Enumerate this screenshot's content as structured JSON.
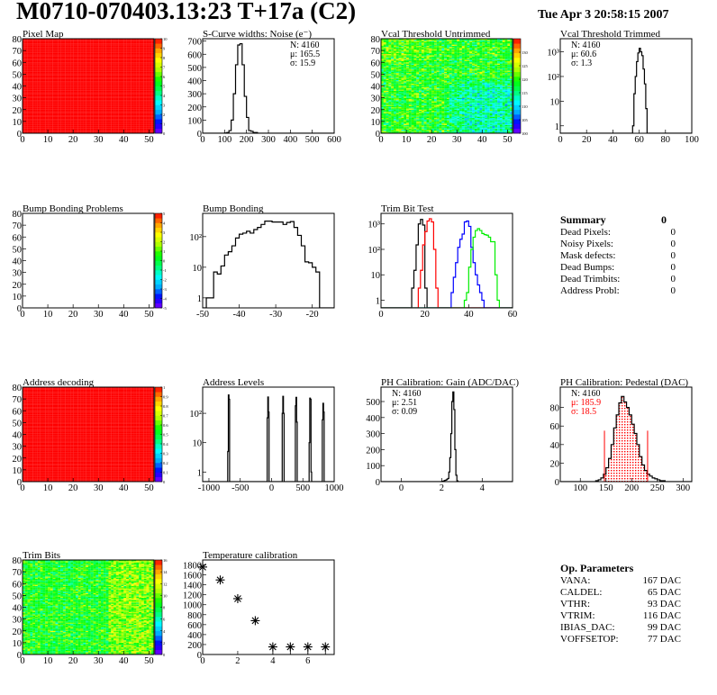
{
  "header": {
    "title": "M0710-070403.13:23 T+17a (C2)",
    "timestamp": "Tue Apr  3 20:58:15 2007"
  },
  "summary": {
    "title": "Summary",
    "total": "0",
    "items": [
      {
        "label": "Dead Pixels:",
        "value": "0"
      },
      {
        "label": "Noisy Pixels:",
        "value": "0"
      },
      {
        "label": "Mask defects:",
        "value": "0"
      },
      {
        "label": "Dead Bumps:",
        "value": "0"
      },
      {
        "label": "Dead Trimbits:",
        "value": "0"
      },
      {
        "label": "Address Probl:",
        "value": "0"
      }
    ]
  },
  "op_parameters": {
    "title": "Op. Parameters",
    "items": [
      {
        "label": "VANA:",
        "value": "167 DAC"
      },
      {
        "label": "CALDEL:",
        "value": "65 DAC"
      },
      {
        "label": "VTHR:",
        "value": "93 DAC"
      },
      {
        "label": "VTRIM:",
        "value": "116 DAC"
      },
      {
        "label": "IBIAS_DAC:",
        "value": "99 DAC"
      },
      {
        "label": "VOFFSETOP:",
        "value": "77 DAC"
      }
    ]
  },
  "colors": {
    "palette": [
      "#7f00ff",
      "#0000ff",
      "#00aaff",
      "#00ffff",
      "#00ff66",
      "#00ff00",
      "#aaff00",
      "#ffff00",
      "#ff9900",
      "#ff0000"
    ],
    "pedestal_fill": "#ff0000"
  },
  "chart_data": [
    {
      "type": "heatmap",
      "title": "Pixel Map",
      "xlim": [
        0,
        52
      ],
      "ylim": [
        0,
        80
      ],
      "xticks": [
        0,
        10,
        20,
        30,
        40,
        50
      ],
      "yticks": [
        0,
        10,
        20,
        30,
        40,
        50,
        60,
        70,
        80
      ],
      "zlim": [
        0,
        10
      ],
      "zticks": [
        0,
        1,
        2,
        3,
        4,
        5,
        6,
        7,
        8,
        9,
        10
      ],
      "uniform_value": 10
    },
    {
      "type": "histogram",
      "title": "S-Curve widths: Noise (e⁻)",
      "xlim": [
        0,
        600
      ],
      "ylim": [
        0,
        718
      ],
      "xticks": [
        0,
        100,
        200,
        300,
        400,
        500,
        600
      ],
      "yticks": [
        0,
        100,
        200,
        300,
        400,
        500,
        600,
        700
      ],
      "bin_width": 10,
      "series": [
        {
          "color": "#000000",
          "x": [
            100,
            110,
            120,
            130,
            140,
            150,
            160,
            170,
            180,
            190,
            200,
            210,
            220,
            230,
            240
          ],
          "y": [
            2,
            5,
            20,
            100,
            300,
            520,
            670,
            680,
            520,
            280,
            120,
            20,
            15,
            5,
            5
          ]
        }
      ],
      "stats_position": "top-right",
      "stats": [
        {
          "text": "N: 4160"
        },
        {
          "text": "μ: 165.5"
        },
        {
          "text": "σ: 15.9"
        }
      ]
    },
    {
      "type": "heatmap",
      "title": "Vcal Threshold Untrimmed",
      "xlim": [
        0,
        52
      ],
      "ylim": [
        0,
        80
      ],
      "xticks": [
        0,
        10,
        20,
        30,
        40,
        50
      ],
      "yticks": [
        0,
        10,
        20,
        30,
        40,
        50,
        60,
        70,
        80
      ],
      "zlim": [
        100,
        135
      ],
      "zticks": [
        100,
        105,
        110,
        115,
        120,
        125,
        130
      ]
    },
    {
      "type": "histogram",
      "title": "Vcal Threshold Trimmed",
      "xlim": [
        0,
        100
      ],
      "ylim": [
        0.5,
        3400
      ],
      "ylog": true,
      "xticks": [
        0,
        20,
        40,
        60,
        80,
        100
      ],
      "yticks": [
        1,
        10,
        100,
        1000
      ],
      "ytick_labels": [
        "1",
        "10",
        "10²",
        "10³"
      ],
      "bin_width": 1,
      "series": [
        {
          "color": "#000000",
          "x": [
            55,
            56,
            57,
            58,
            59,
            60,
            61,
            62,
            63,
            64,
            65
          ],
          "y": [
            1,
            20,
            100,
            400,
            900,
            1400,
            1000,
            700,
            200,
            50,
            5
          ]
        }
      ],
      "stats_position": "top-left",
      "stats": [
        {
          "text": "N: 4160"
        },
        {
          "text": "μ: 60.6"
        },
        {
          "text": "σ:  1.3"
        }
      ]
    },
    {
      "type": "heatmap",
      "title": "Bump Bonding Problems",
      "xlim": [
        0,
        52
      ],
      "ylim": [
        0,
        80
      ],
      "xticks": [
        0,
        10,
        20,
        30,
        40,
        50
      ],
      "yticks": [
        0,
        10,
        20,
        30,
        40,
        50,
        60,
        70,
        80
      ],
      "zlim": [
        -5,
        5
      ],
      "zticks": [
        -5,
        -4,
        -3,
        -2,
        -1,
        0,
        1,
        2,
        3,
        4,
        5
      ],
      "empty": true
    },
    {
      "type": "histogram",
      "title": "Bump Bonding",
      "xlim": [
        -50,
        -14
      ],
      "ylim": [
        0.47,
        575
      ],
      "ylog": true,
      "xticks": [
        -50,
        -40,
        -30,
        -20
      ],
      "yticks": [
        1,
        10,
        100
      ],
      "ytick_labels": [
        "1",
        "10",
        "10²"
      ],
      "bin_width": 1,
      "series": [
        {
          "color": "#000000",
          "x": [
            -49,
            -48,
            -47,
            -46,
            -45,
            -44,
            -43,
            -42,
            -41,
            -40,
            -39,
            -38,
            -37,
            -36,
            -35,
            -34,
            -33,
            -32,
            -31,
            -30,
            -29,
            -28,
            -27,
            -26,
            -25,
            -24,
            -23,
            -22,
            -21,
            -20,
            -19
          ],
          "y": [
            1,
            1,
            7,
            6,
            11,
            25,
            32,
            50,
            90,
            120,
            130,
            150,
            130,
            170,
            200,
            250,
            320,
            320,
            300,
            300,
            300,
            250,
            290,
            310,
            200,
            110,
            50,
            15,
            14,
            10,
            7
          ]
        }
      ]
    },
    {
      "type": "histogram",
      "title": "Trim Bit Test",
      "xlim": [
        0,
        60
      ],
      "ylim": [
        0.5,
        2600
      ],
      "ylog": true,
      "xticks": [
        0,
        20,
        40,
        60
      ],
      "yticks": [
        1,
        10,
        100,
        1000
      ],
      "ytick_labels": [
        "1",
        "10",
        "10²",
        "10³"
      ],
      "bin_width": 1,
      "series": [
        {
          "color": "#000000",
          "x": [
            14,
            15,
            16,
            17,
            18,
            19,
            20
          ],
          "y": [
            3,
            15,
            150,
            1000,
            1500,
            900,
            3
          ]
        },
        {
          "color": "#ff0000",
          "x": [
            17,
            18,
            19,
            20,
            21,
            22,
            23,
            24,
            25
          ],
          "y": [
            3,
            15,
            150,
            500,
            1300,
            1600,
            1200,
            100,
            3
          ]
        },
        {
          "color": "#0000ff",
          "x": [
            32,
            33,
            34,
            35,
            36,
            37,
            38,
            39,
            40,
            41,
            42,
            43,
            44,
            45,
            46
          ],
          "y": [
            2,
            8,
            30,
            120,
            250,
            400,
            1200,
            1300,
            800,
            120,
            30,
            10,
            4,
            2,
            1
          ]
        },
        {
          "color": "#00ee00",
          "x": [
            38,
            39,
            40,
            41,
            42,
            43,
            44,
            45,
            46,
            47,
            48,
            49,
            50,
            51,
            52,
            53
          ],
          "y": [
            1,
            2,
            20,
            100,
            300,
            550,
            650,
            550,
            420,
            380,
            360,
            300,
            200,
            200,
            10,
            1
          ]
        }
      ]
    },
    {
      "type": "heatmap",
      "title": "Address decoding",
      "xlim": [
        0,
        52
      ],
      "ylim": [
        0,
        80
      ],
      "xticks": [
        0,
        10,
        20,
        30,
        40,
        50
      ],
      "yticks": [
        0,
        10,
        20,
        30,
        40,
        50,
        60,
        70,
        80
      ],
      "zlim": [
        0,
        1
      ],
      "zticks": [
        0,
        0.1,
        0.2,
        0.3,
        0.4,
        0.5,
        0.6,
        0.7,
        0.8,
        0.9,
        1
      ],
      "uniform_value": 1
    },
    {
      "type": "histogram",
      "title": "Address Levels",
      "xlim": [
        -1100,
        1000
      ],
      "ylim": [
        0.47,
        780
      ],
      "ylog": true,
      "xticks": [
        -1000,
        -500,
        0,
        500,
        1000
      ],
      "yticks": [
        1,
        10,
        100
      ],
      "ytick_labels": [
        "1",
        "10",
        "10²"
      ],
      "bin_width": 10,
      "series": [
        {
          "color": "#000000",
          "x": [
            -710,
            -700,
            -690,
            -680,
            -80,
            -70,
            -60,
            -50,
            160,
            170,
            180,
            190,
            370,
            380,
            390,
            400,
            590,
            600,
            610,
            620,
            630,
            800,
            810,
            820,
            830
          ],
          "y": [
            0,
            5,
            420,
            300,
            0,
            70,
            360,
            110,
            0,
            100,
            380,
            100,
            0,
            180,
            350,
            50,
            0,
            10,
            330,
            300,
            1,
            0,
            60,
            220,
            110
          ]
        }
      ]
    },
    {
      "type": "histogram",
      "title": "PH Calibration: Gain (ADC/DAC)",
      "xlim": [
        -1,
        5.5
      ],
      "ylim": [
        0,
        590
      ],
      "xticks": [
        0,
        2,
        4
      ],
      "yticks": [
        0,
        100,
        200,
        300,
        400,
        500
      ],
      "bin_width": 0.05,
      "series": [
        {
          "color": "#000000",
          "x": [
            2.0,
            2.05,
            2.1,
            2.15,
            2.2,
            2.25,
            2.3,
            2.35,
            2.4,
            2.45,
            2.5,
            2.55,
            2.6,
            2.65,
            2.7,
            2.75
          ],
          "y": [
            2,
            3,
            5,
            8,
            10,
            15,
            20,
            60,
            150,
            300,
            500,
            560,
            450,
            200,
            40,
            5
          ]
        }
      ],
      "stats_position": "top-left",
      "stats": [
        {
          "text": "N: 4160"
        },
        {
          "text": "μ: 2.51"
        },
        {
          "text": "σ: 0.09"
        }
      ]
    },
    {
      "type": "histogram",
      "title": "PH Calibration: Pedestal (DAC)",
      "xlim": [
        61,
        317
      ],
      "ylim": [
        0,
        102
      ],
      "xticks": [
        100,
        150,
        200,
        250,
        300
      ],
      "yticks": [
        0,
        20,
        40,
        60,
        80
      ],
      "bin_width": 5,
      "series": [
        {
          "color": "#000000",
          "x": [
            130,
            135,
            140,
            145,
            150,
            155,
            160,
            165,
            170,
            175,
            180,
            185,
            190,
            195,
            200,
            205,
            210,
            215,
            220,
            225,
            230,
            235,
            240,
            245,
            250,
            255,
            260
          ],
          "y": [
            1,
            2,
            4,
            8,
            15,
            25,
            40,
            58,
            72,
            85,
            92,
            86,
            80,
            72,
            62,
            52,
            40,
            27,
            18,
            12,
            8,
            6,
            4,
            3,
            2,
            1,
            1
          ]
        }
      ],
      "fill_range": [
        148,
        232
      ],
      "marker_lines": [
        147,
        231
      ],
      "marker_height": 55,
      "stats_position": "top-left",
      "stats": [
        {
          "text": "N: 4160",
          "color": "#000000"
        },
        {
          "text": "μ: 185.9",
          "color": "#ff0000"
        },
        {
          "text": "σ: 18.5",
          "color": "#ff0000"
        }
      ]
    },
    {
      "type": "heatmap",
      "title": "Trim Bits",
      "xlim": [
        0,
        52
      ],
      "ylim": [
        0,
        80
      ],
      "xticks": [
        0,
        10,
        20,
        30,
        40,
        50
      ],
      "yticks": [
        0,
        10,
        20,
        30,
        40,
        50,
        60,
        70,
        80
      ],
      "zlim": [
        0,
        16
      ],
      "zticks": [
        0,
        2,
        4,
        6,
        8,
        10,
        12,
        14,
        16
      ]
    },
    {
      "type": "scatter",
      "title": "Temperature calibration",
      "xlim": [
        0,
        7.5
      ],
      "ylim": [
        0,
        1900
      ],
      "xticks": [
        0,
        2,
        4,
        6
      ],
      "yticks": [
        0,
        200,
        400,
        600,
        800,
        1000,
        1200,
        1400,
        1600,
        1800
      ],
      "marker": "asterisk",
      "x": [
        0,
        1,
        2,
        3,
        4,
        5,
        6,
        7
      ],
      "y": [
        1758,
        1498,
        1122,
        680,
        153,
        153,
        153,
        153
      ]
    }
  ]
}
